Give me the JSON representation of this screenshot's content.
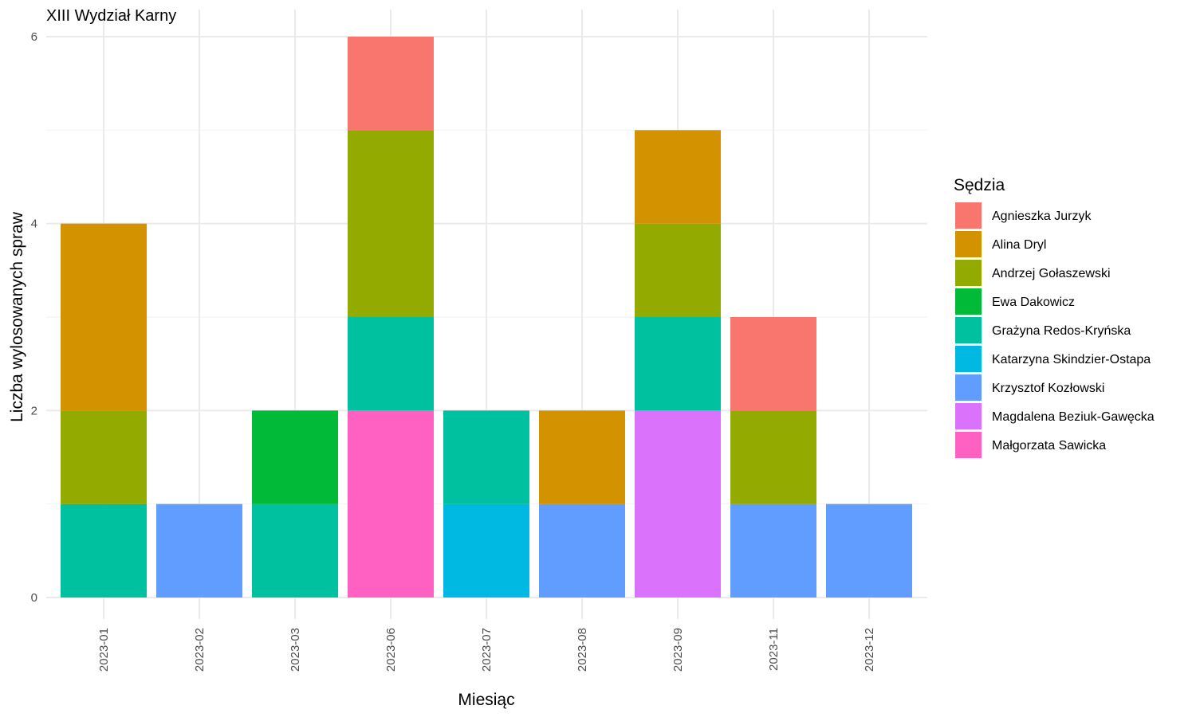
{
  "chart_data": {
    "type": "bar",
    "stacked": true,
    "title": "XIII Wydział Karny",
    "xlabel": "Miesiąc",
    "ylabel": "Liczba wylosowanych spraw",
    "ylim": [
      0,
      6
    ],
    "y_ticks": [
      0,
      2,
      4,
      6
    ],
    "grid": true,
    "legend_title": "Sędzia",
    "legend_position": "right",
    "categories": [
      "2023-01",
      "2023-02",
      "2023-03",
      "2023-06",
      "2023-07",
      "2023-08",
      "2023-09",
      "2023-11",
      "2023-12"
    ],
    "series": [
      {
        "name": "Agnieszka Jurzyk",
        "color": "#F8766D",
        "values": [
          0,
          0,
          0,
          1,
          0,
          0,
          0,
          1,
          0
        ]
      },
      {
        "name": "Alina Dryl",
        "color": "#D39200",
        "values": [
          2,
          0,
          0,
          0,
          0,
          1,
          1,
          0,
          0
        ]
      },
      {
        "name": "Andrzej Gołaszewski",
        "color": "#93AA00",
        "values": [
          1,
          0,
          0,
          2,
          0,
          0,
          1,
          1,
          0
        ]
      },
      {
        "name": "Ewa Dakowicz",
        "color": "#00BA38",
        "values": [
          0,
          0,
          1,
          0,
          0,
          0,
          0,
          0,
          0
        ]
      },
      {
        "name": "Grażyna Redos-Kryńska",
        "color": "#00C19F",
        "values": [
          1,
          0,
          1,
          1,
          1,
          0,
          1,
          0,
          0
        ]
      },
      {
        "name": "Katarzyna Skindzier-Ostapa",
        "color": "#00B9E3",
        "values": [
          0,
          0,
          0,
          0,
          1,
          0,
          0,
          0,
          0
        ]
      },
      {
        "name": "Krzysztof Kozłowski",
        "color": "#619CFF",
        "values": [
          0,
          1,
          0,
          0,
          0,
          1,
          0,
          1,
          1
        ]
      },
      {
        "name": "Magdalena Beziuk-Gawęcka",
        "color": "#DB72FB",
        "values": [
          0,
          0,
          0,
          0,
          0,
          0,
          2,
          0,
          0
        ]
      },
      {
        "name": "Małgorzata Sawicka",
        "color": "#FF61C3",
        "values": [
          0,
          0,
          0,
          2,
          0,
          0,
          0,
          0,
          0
        ]
      }
    ]
  }
}
